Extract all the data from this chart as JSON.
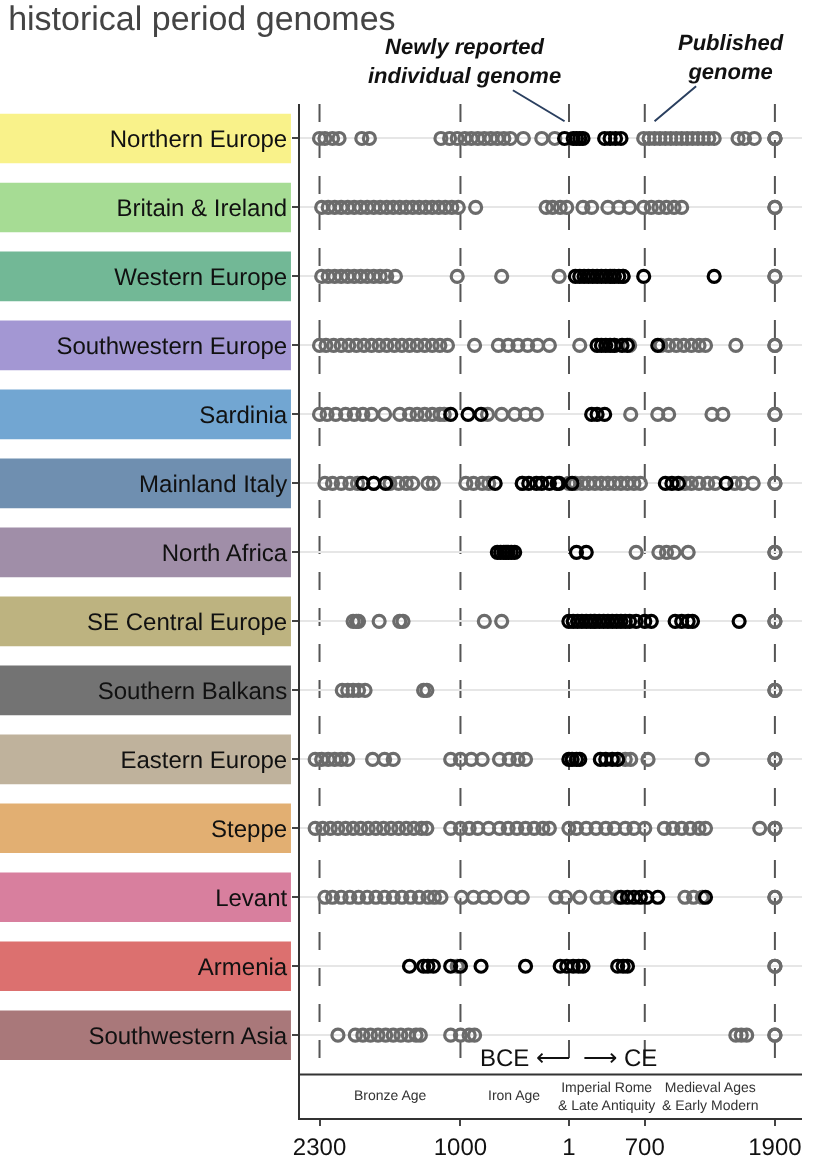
{
  "chart_data": {
    "type": "scatter",
    "orientation": "horizontal",
    "title": "historical period genomes",
    "categories": [
      "Northern Europe",
      "Britain & Ireland",
      "Western Europe",
      "Southwestern Europe",
      "Sardinia",
      "Mainland Italy",
      "North Africa",
      "SE Central Europe",
      "Southern Balkans",
      "Eastern Europe",
      "Steppe",
      "Levant",
      "Armenia",
      "Southwestern Asia"
    ],
    "colors": [
      "#f9f28a",
      "#a6dc94",
      "#72b896",
      "#a397d3",
      "#72a6d2",
      "#6f8fb0",
      "#a08ea8",
      "#bdb380",
      "#737373",
      "#bfb29c",
      "#e2af72",
      "#d87f9e",
      "#dc706f",
      "#a9787a"
    ],
    "xlim": [
      -2480,
      2150
    ],
    "xticks": [
      {
        "value": -2300,
        "label": "2300"
      },
      {
        "value": -1000,
        "label": "1000"
      },
      1,
      700,
      1900
    ],
    "grid": "y",
    "marker": "circle",
    "series": [
      {
        "name": "Published genome",
        "color": "#6b6b6b",
        "x": [
          "Northern Europe",
          "Northern Europe",
          "Northern Europe",
          "Northern Europe",
          "Northern Europe",
          "Northern Europe",
          "Northern Europe",
          "Northern Europe",
          "Northern Europe",
          "Northern Europe",
          "Northern Europe",
          "Northern Europe",
          "Northern Europe",
          "Northern Europe",
          "Northern Europe",
          "Northern Europe",
          "Northern Europe",
          "Northern Europe",
          "Northern Europe",
          "Northern Europe",
          "Northern Europe",
          "Northern Europe",
          "Northern Europe",
          "Northern Europe",
          "Northern Europe",
          "Northern Europe",
          "Northern Europe",
          "Northern Europe",
          "Northern Europe",
          "Northern Europe",
          "Northern Europe",
          "Northern Europe",
          "Northern Europe",
          "Northern Europe",
          "Northern Europe",
          "Northern Europe",
          "Northern Europe",
          "Northern Europe",
          "Northern Europe",
          "Northern Europe",
          "Britain & Ireland",
          "Britain & Ireland",
          "Britain & Ireland",
          "Britain & Ireland",
          "Britain & Ireland",
          "Britain & Ireland",
          "Britain & Ireland",
          "Britain & Ireland",
          "Britain & Ireland",
          "Britain & Ireland",
          "Britain & Ireland",
          "Britain & Ireland",
          "Britain & Ireland",
          "Britain & Ireland",
          "Britain & Ireland",
          "Britain & Ireland",
          "Britain & Ireland",
          "Britain & Ireland",
          "Britain & Ireland",
          "Britain & Ireland",
          "Britain & Ireland",
          "Britain & Ireland",
          "Britain & Ireland",
          "Britain & Ireland",
          "Britain & Ireland",
          "Britain & Ireland",
          "Britain & Ireland",
          "Britain & Ireland",
          "Britain & Ireland",
          "Britain & Ireland",
          "Britain & Ireland",
          "Britain & Ireland",
          "Britain & Ireland",
          "Britain & Ireland",
          "Britain & Ireland",
          "Britain & Ireland",
          "Britain & Ireland",
          "Britain & Ireland",
          "Britain & Ireland",
          "Britain & Ireland",
          "Western Europe",
          "Western Europe",
          "Western Europe",
          "Western Europe",
          "Western Europe",
          "Western Europe",
          "Western Europe",
          "Western Europe",
          "Western Europe",
          "Western Europe",
          "Western Europe",
          "Western Europe",
          "Western Europe",
          "Western Europe",
          "Western Europe",
          "Western Europe",
          "Western Europe",
          "Western Europe",
          "Western Europe",
          "Southwestern Europe",
          "Southwestern Europe",
          "Southwestern Europe",
          "Southwestern Europe",
          "Southwestern Europe",
          "Southwestern Europe",
          "Southwestern Europe",
          "Southwestern Europe",
          "Southwestern Europe",
          "Southwestern Europe",
          "Southwestern Europe",
          "Southwestern Europe",
          "Southwestern Europe",
          "Southwestern Europe",
          "Southwestern Europe",
          "Southwestern Europe",
          "Southwestern Europe",
          "Southwestern Europe",
          "Southwestern Europe",
          "Southwestern Europe",
          "Southwestern Europe",
          "Southwestern Europe",
          "Southwestern Europe",
          "Southwestern Europe",
          "Southwestern Europe",
          "Southwestern Europe",
          "Southwestern Europe",
          "Southwestern Europe",
          "Southwestern Europe",
          "Southwestern Europe",
          "Southwestern Europe",
          "Southwestern Europe",
          "Southwestern Europe",
          "Southwestern Europe",
          "Southwestern Europe",
          "Southwestern Europe",
          "Southwestern Europe",
          "Southwestern Europe",
          "Sardinia",
          "Sardinia",
          "Sardinia",
          "Sardinia",
          "Sardinia",
          "Sardinia",
          "Sardinia",
          "Sardinia",
          "Sardinia",
          "Sardinia",
          "Sardinia",
          "Sardinia",
          "Sardinia",
          "Sardinia",
          "Sardinia",
          "Sardinia",
          "Sardinia",
          "Sardinia",
          "Sardinia",
          "Sardinia",
          "Sardinia",
          "Sardinia",
          "Sardinia",
          "Sardinia",
          "Sardinia",
          "Sardinia",
          "Sardinia",
          "Mainland Italy",
          "Mainland Italy",
          "Mainland Italy",
          "Mainland Italy",
          "Mainland Italy",
          "Mainland Italy",
          "Mainland Italy",
          "Mainland Italy",
          "Mainland Italy",
          "Mainland Italy",
          "Mainland Italy",
          "Mainland Italy",
          "Mainland Italy",
          "Mainland Italy",
          "Mainland Italy",
          "Mainland Italy",
          "Mainland Italy",
          "Mainland Italy",
          "Mainland Italy",
          "Mainland Italy",
          "Mainland Italy",
          "Mainland Italy",
          "Mainland Italy",
          "Mainland Italy",
          "Mainland Italy",
          "Mainland Italy",
          "Mainland Italy",
          "Mainland Italy",
          "Mainland Italy",
          "Mainland Italy",
          "Mainland Italy",
          "Mainland Italy",
          "Mainland Italy",
          "Mainland Italy",
          "Mainland Italy",
          "Mainland Italy",
          "Mainland Italy",
          "Mainland Italy",
          "Mainland Italy",
          "North Africa",
          "North Africa",
          "North Africa",
          "North Africa",
          "North Africa",
          "North Africa",
          "North Africa",
          "SE Central Europe",
          "SE Central Europe",
          "SE Central Europe",
          "SE Central Europe",
          "SE Central Europe",
          "SE Central Europe",
          "SE Central Europe",
          "SE Central Europe",
          "SE Central Europe",
          "SE Central Europe",
          "SE Central Europe",
          "Southern Balkans",
          "Southern Balkans",
          "Southern Balkans",
          "Southern Balkans",
          "Southern Balkans",
          "Southern Balkans",
          "Southern Balkans",
          "Southern Balkans",
          "Southern Balkans",
          "Eastern Europe",
          "Eastern Europe",
          "Eastern Europe",
          "Eastern Europe",
          "Eastern Europe",
          "Eastern Europe",
          "Eastern Europe",
          "Eastern Europe",
          "Eastern Europe",
          "Eastern Europe",
          "Eastern Europe",
          "Eastern Europe",
          "Eastern Europe",
          "Eastern Europe",
          "Eastern Europe",
          "Eastern Europe",
          "Eastern Europe",
          "Eastern Europe",
          "Eastern Europe",
          "Eastern Europe",
          "Eastern Europe",
          "Eastern Europe",
          "Eastern Europe",
          "Steppe",
          "Steppe",
          "Steppe",
          "Steppe",
          "Steppe",
          "Steppe",
          "Steppe",
          "Steppe",
          "Steppe",
          "Steppe",
          "Steppe",
          "Steppe",
          "Steppe",
          "Steppe",
          "Steppe",
          "Steppe",
          "Steppe",
          "Steppe",
          "Steppe",
          "Steppe",
          "Steppe",
          "Steppe",
          "Steppe",
          "Steppe",
          "Steppe",
          "Steppe",
          "Steppe",
          "Steppe",
          "Steppe",
          "Steppe",
          "Steppe",
          "Steppe",
          "Steppe",
          "Steppe",
          "Steppe",
          "Steppe",
          "Steppe",
          "Steppe",
          "Steppe",
          "Steppe",
          "Steppe",
          "Steppe",
          "Steppe",
          "Steppe",
          "Steppe",
          "Steppe",
          "Levant",
          "Levant",
          "Levant",
          "Levant",
          "Levant",
          "Levant",
          "Levant",
          "Levant",
          "Levant",
          "Levant",
          "Levant",
          "Levant",
          "Levant",
          "Levant",
          "Levant",
          "Levant",
          "Levant",
          "Levant",
          "Levant",
          "Levant",
          "Levant",
          "Levant",
          "Levant",
          "Levant",
          "Levant",
          "Levant",
          "Levant",
          "Levant",
          "Levant",
          "Levant",
          "Levant",
          "Levant",
          "Armenia",
          "Armenia",
          "Armenia",
          "Southwestern Asia",
          "Southwestern Asia",
          "Southwestern Asia",
          "Southwestern Asia",
          "Southwestern Asia",
          "Southwestern Asia",
          "Southwestern Asia",
          "Southwestern Asia",
          "Southwestern Asia",
          "Southwestern Asia",
          "Southwestern Asia",
          "Southwestern Asia",
          "Southwestern Asia",
          "Southwestern Asia",
          "Southwestern Asia",
          "Southwestern Asia",
          "Southwestern Asia",
          "Southwestern Asia",
          "Southwestern Asia",
          "Southwestern Asia"
        ],
        "values": [
          -2300,
          -2250,
          -2180,
          -2120,
          -1910,
          -1840,
          -1180,
          -1100,
          -1030,
          -960,
          -900,
          -840,
          -780,
          -720,
          -660,
          -600,
          -540,
          -420,
          -250,
          -130,
          690,
          740,
          790,
          840,
          890,
          940,
          990,
          1040,
          1090,
          1140,
          1190,
          1240,
          1290,
          1340,
          1560,
          1620,
          1710,
          1900,
          1900,
          1900,
          -2280,
          -2220,
          -2160,
          -2100,
          -2040,
          -1980,
          -1920,
          -1860,
          -1800,
          -1740,
          -1680,
          -1620,
          -1560,
          -1500,
          -1440,
          -1380,
          -1320,
          -1260,
          -1200,
          -1140,
          -1080,
          -1020,
          -860,
          -210,
          -150,
          -80,
          -20,
          130,
          210,
          360,
          460,
          560,
          690,
          760,
          830,
          900,
          970,
          1040,
          1900,
          1900,
          -2280,
          -2220,
          -2160,
          -2100,
          -2040,
          -1980,
          -1920,
          -1860,
          -1800,
          -1740,
          -1680,
          -1600,
          -1030,
          -620,
          -90,
          400,
          500,
          1900,
          1900,
          -2300,
          -2240,
          -2170,
          -2100,
          -2030,
          -1960,
          -1890,
          -1820,
          -1750,
          -1680,
          -1610,
          -1540,
          -1470,
          -1400,
          -1330,
          -1260,
          -1190,
          -1120,
          -870,
          -650,
          -560,
          -470,
          -380,
          -290,
          -180,
          100,
          420,
          560,
          850,
          920,
          990,
          1060,
          1130,
          1200,
          1260,
          1540,
          1900,
          1900,
          -2300,
          -2230,
          -2150,
          -2060,
          -1980,
          -1900,
          -1820,
          -1700,
          -1560,
          -1470,
          -1400,
          -1330,
          -1260,
          -1190,
          -1150,
          -750,
          -620,
          -500,
          -400,
          -300,
          570,
          820,
          920,
          1320,
          1420,
          1900,
          1900,
          -2250,
          -2180,
          -2100,
          -2020,
          -1950,
          -1800,
          -1650,
          -1570,
          -1500,
          -1440,
          -1300,
          -1250,
          -950,
          -880,
          -800,
          -740,
          -430,
          0,
          60,
          120,
          180,
          240,
          300,
          360,
          420,
          480,
          540,
          600,
          660,
          1070,
          1130,
          1200,
          1280,
          1350,
          1530,
          1600,
          1700,
          1900,
          1900,
          620,
          830,
          900,
          970,
          1100,
          1900,
          1900,
          -1990,
          -1960,
          -1940,
          -1750,
          -1560,
          -1530,
          -780,
          -620,
          230,
          1900,
          1900,
          -2090,
          -2040,
          -1990,
          -1940,
          -1880,
          -1340,
          -1310,
          1900,
          1900,
          -2340,
          -2280,
          -2220,
          -2160,
          -2100,
          -2040,
          -1810,
          -1700,
          -1620,
          -1090,
          -1000,
          -900,
          -800,
          -640,
          -550,
          -470,
          -400,
          520,
          570,
          730,
          1230,
          1900,
          1900,
          -2340,
          -2270,
          -2200,
          -2130,
          -2060,
          -1990,
          -1920,
          -1850,
          -1780,
          -1710,
          -1640,
          -1570,
          -1500,
          -1430,
          -1360,
          -1310,
          -1090,
          -1000,
          -920,
          -840,
          -740,
          -640,
          -560,
          -480,
          -400,
          -320,
          -240,
          -180,
          0,
          70,
          160,
          250,
          340,
          420,
          520,
          600,
          700,
          880,
          960,
          1040,
          1120,
          1200,
          1260,
          1760,
          1900,
          1900,
          -2250,
          -2180,
          -2100,
          -2020,
          -1940,
          -1860,
          -1780,
          -1700,
          -1620,
          -1540,
          -1460,
          -1380,
          -1300,
          -1240,
          -1180,
          -990,
          -880,
          -780,
          -680,
          -530,
          -430,
          -120,
          -30,
          100,
          260,
          350,
          450,
          1070,
          1150,
          1230,
          1900,
          1900,
          -1030,
          1900,
          1900,
          -2130,
          -1970,
          -1900,
          -1830,
          -1760,
          -1690,
          -1620,
          -1550,
          -1480,
          -1410,
          -1370,
          -1090,
          -1000,
          -920,
          -870,
          1540,
          1590,
          1640,
          1900,
          1900
        ]
      },
      {
        "name": "Newly reported individual genome",
        "color": "#000000",
        "x": [
          "Northern Europe",
          "Northern Europe",
          "Northern Europe",
          "Northern Europe",
          "Northern Europe",
          "Northern Europe",
          "Northern Europe",
          "Northern Europe",
          "Northern Europe",
          "Western Europe",
          "Western Europe",
          "Western Europe",
          "Western Europe",
          "Western Europe",
          "Western Europe",
          "Western Europe",
          "Western Europe",
          "Western Europe",
          "Western Europe",
          "Western Europe",
          "Western Europe",
          "Western Europe",
          "Western Europe",
          "Southwestern Europe",
          "Southwestern Europe",
          "Southwestern Europe",
          "Southwestern Europe",
          "Southwestern Europe",
          "Southwestern Europe",
          "Southwestern Europe",
          "Southwestern Europe",
          "Sardinia",
          "Sardinia",
          "Sardinia",
          "Sardinia",
          "Sardinia",
          "Sardinia",
          "Mainland Italy",
          "Mainland Italy",
          "Mainland Italy",
          "Mainland Italy",
          "Mainland Italy",
          "Mainland Italy",
          "Mainland Italy",
          "Mainland Italy",
          "Mainland Italy",
          "Mainland Italy",
          "Mainland Italy",
          "Mainland Italy",
          "Mainland Italy",
          "Mainland Italy",
          "Mainland Italy",
          "Mainland Italy",
          "North Africa",
          "North Africa",
          "North Africa",
          "North Africa",
          "North Africa",
          "North Africa",
          "North Africa",
          "North Africa",
          "North Africa",
          "SE Central Europe",
          "SE Central Europe",
          "SE Central Europe",
          "SE Central Europe",
          "SE Central Europe",
          "SE Central Europe",
          "SE Central Europe",
          "SE Central Europe",
          "SE Central Europe",
          "SE Central Europe",
          "SE Central Europe",
          "SE Central Europe",
          "SE Central Europe",
          "SE Central Europe",
          "SE Central Europe",
          "SE Central Europe",
          "SE Central Europe",
          "SE Central Europe",
          "SE Central Europe",
          "SE Central Europe",
          "SE Central Europe",
          "SE Central Europe",
          "SE Central Europe",
          "Eastern Europe",
          "Eastern Europe",
          "Eastern Europe",
          "Eastern Europe",
          "Eastern Europe",
          "Eastern Europe",
          "Eastern Europe",
          "Eastern Europe",
          "Levant",
          "Levant",
          "Levant",
          "Levant",
          "Levant",
          "Levant",
          "Levant",
          "Armenia",
          "Armenia",
          "Armenia",
          "Armenia",
          "Armenia",
          "Armenia",
          "Armenia",
          "Armenia",
          "Armenia",
          "Armenia",
          "Armenia",
          "Armenia",
          "Armenia",
          "Armenia",
          "Armenia",
          "Armenia"
        ],
        "values": [
          -40,
          40,
          70,
          100,
          130,
          330,
          380,
          430,
          480,
          60,
          100,
          140,
          180,
          220,
          260,
          300,
          340,
          380,
          420,
          460,
          500,
          690,
          1340,
          260,
          300,
          340,
          380,
          420,
          490,
          540,
          820,
          -1090,
          -930,
          -810,
          210,
          260,
          330,
          -1900,
          -1800,
          -1690,
          -680,
          -430,
          -370,
          -300,
          -250,
          -180,
          -110,
          -90,
          30,
          890,
          950,
          1010,
          1450,
          -660,
          -630,
          -600,
          -580,
          -560,
          -530,
          -500,
          70,
          160,
          0,
          40,
          80,
          120,
          160,
          200,
          240,
          280,
          320,
          360,
          400,
          440,
          480,
          520,
          560,
          620,
          700,
          760,
          980,
          1040,
          1100,
          1140,
          1570,
          0,
          30,
          70,
          100,
          290,
          340,
          400,
          450,
          480,
          540,
          600,
          660,
          720,
          820,
          1260,
          -1470,
          -1340,
          -1300,
          -1250,
          -1090,
          -1000,
          -810,
          -400,
          -80,
          -20,
          40,
          90,
          130,
          450,
          500,
          540
        ]
      }
    ],
    "ref_lines": [
      {
        "axis": "x",
        "value": -2300,
        "line_style": "dashed",
        "color": "#555555"
      },
      {
        "axis": "x",
        "value": -1000,
        "line_style": "dashed",
        "color": "#555555"
      },
      {
        "axis": "x",
        "value": 1,
        "line_style": "dashed",
        "color": "#555555"
      },
      {
        "axis": "x",
        "value": 700,
        "line_style": "dashed",
        "color": "#555555"
      },
      {
        "axis": "x",
        "value": 1900,
        "line_style": "dashed",
        "color": "#555555"
      }
    ],
    "annotations": [
      {
        "text": "BCE ⟵  ⟶ CE",
        "x": 1
      },
      "Bronze Age",
      "Iron Age",
      "Imperial Rome\n& Late Antiquity",
      "Medieval Ages\n& Early Modern"
    ]
  }
}
